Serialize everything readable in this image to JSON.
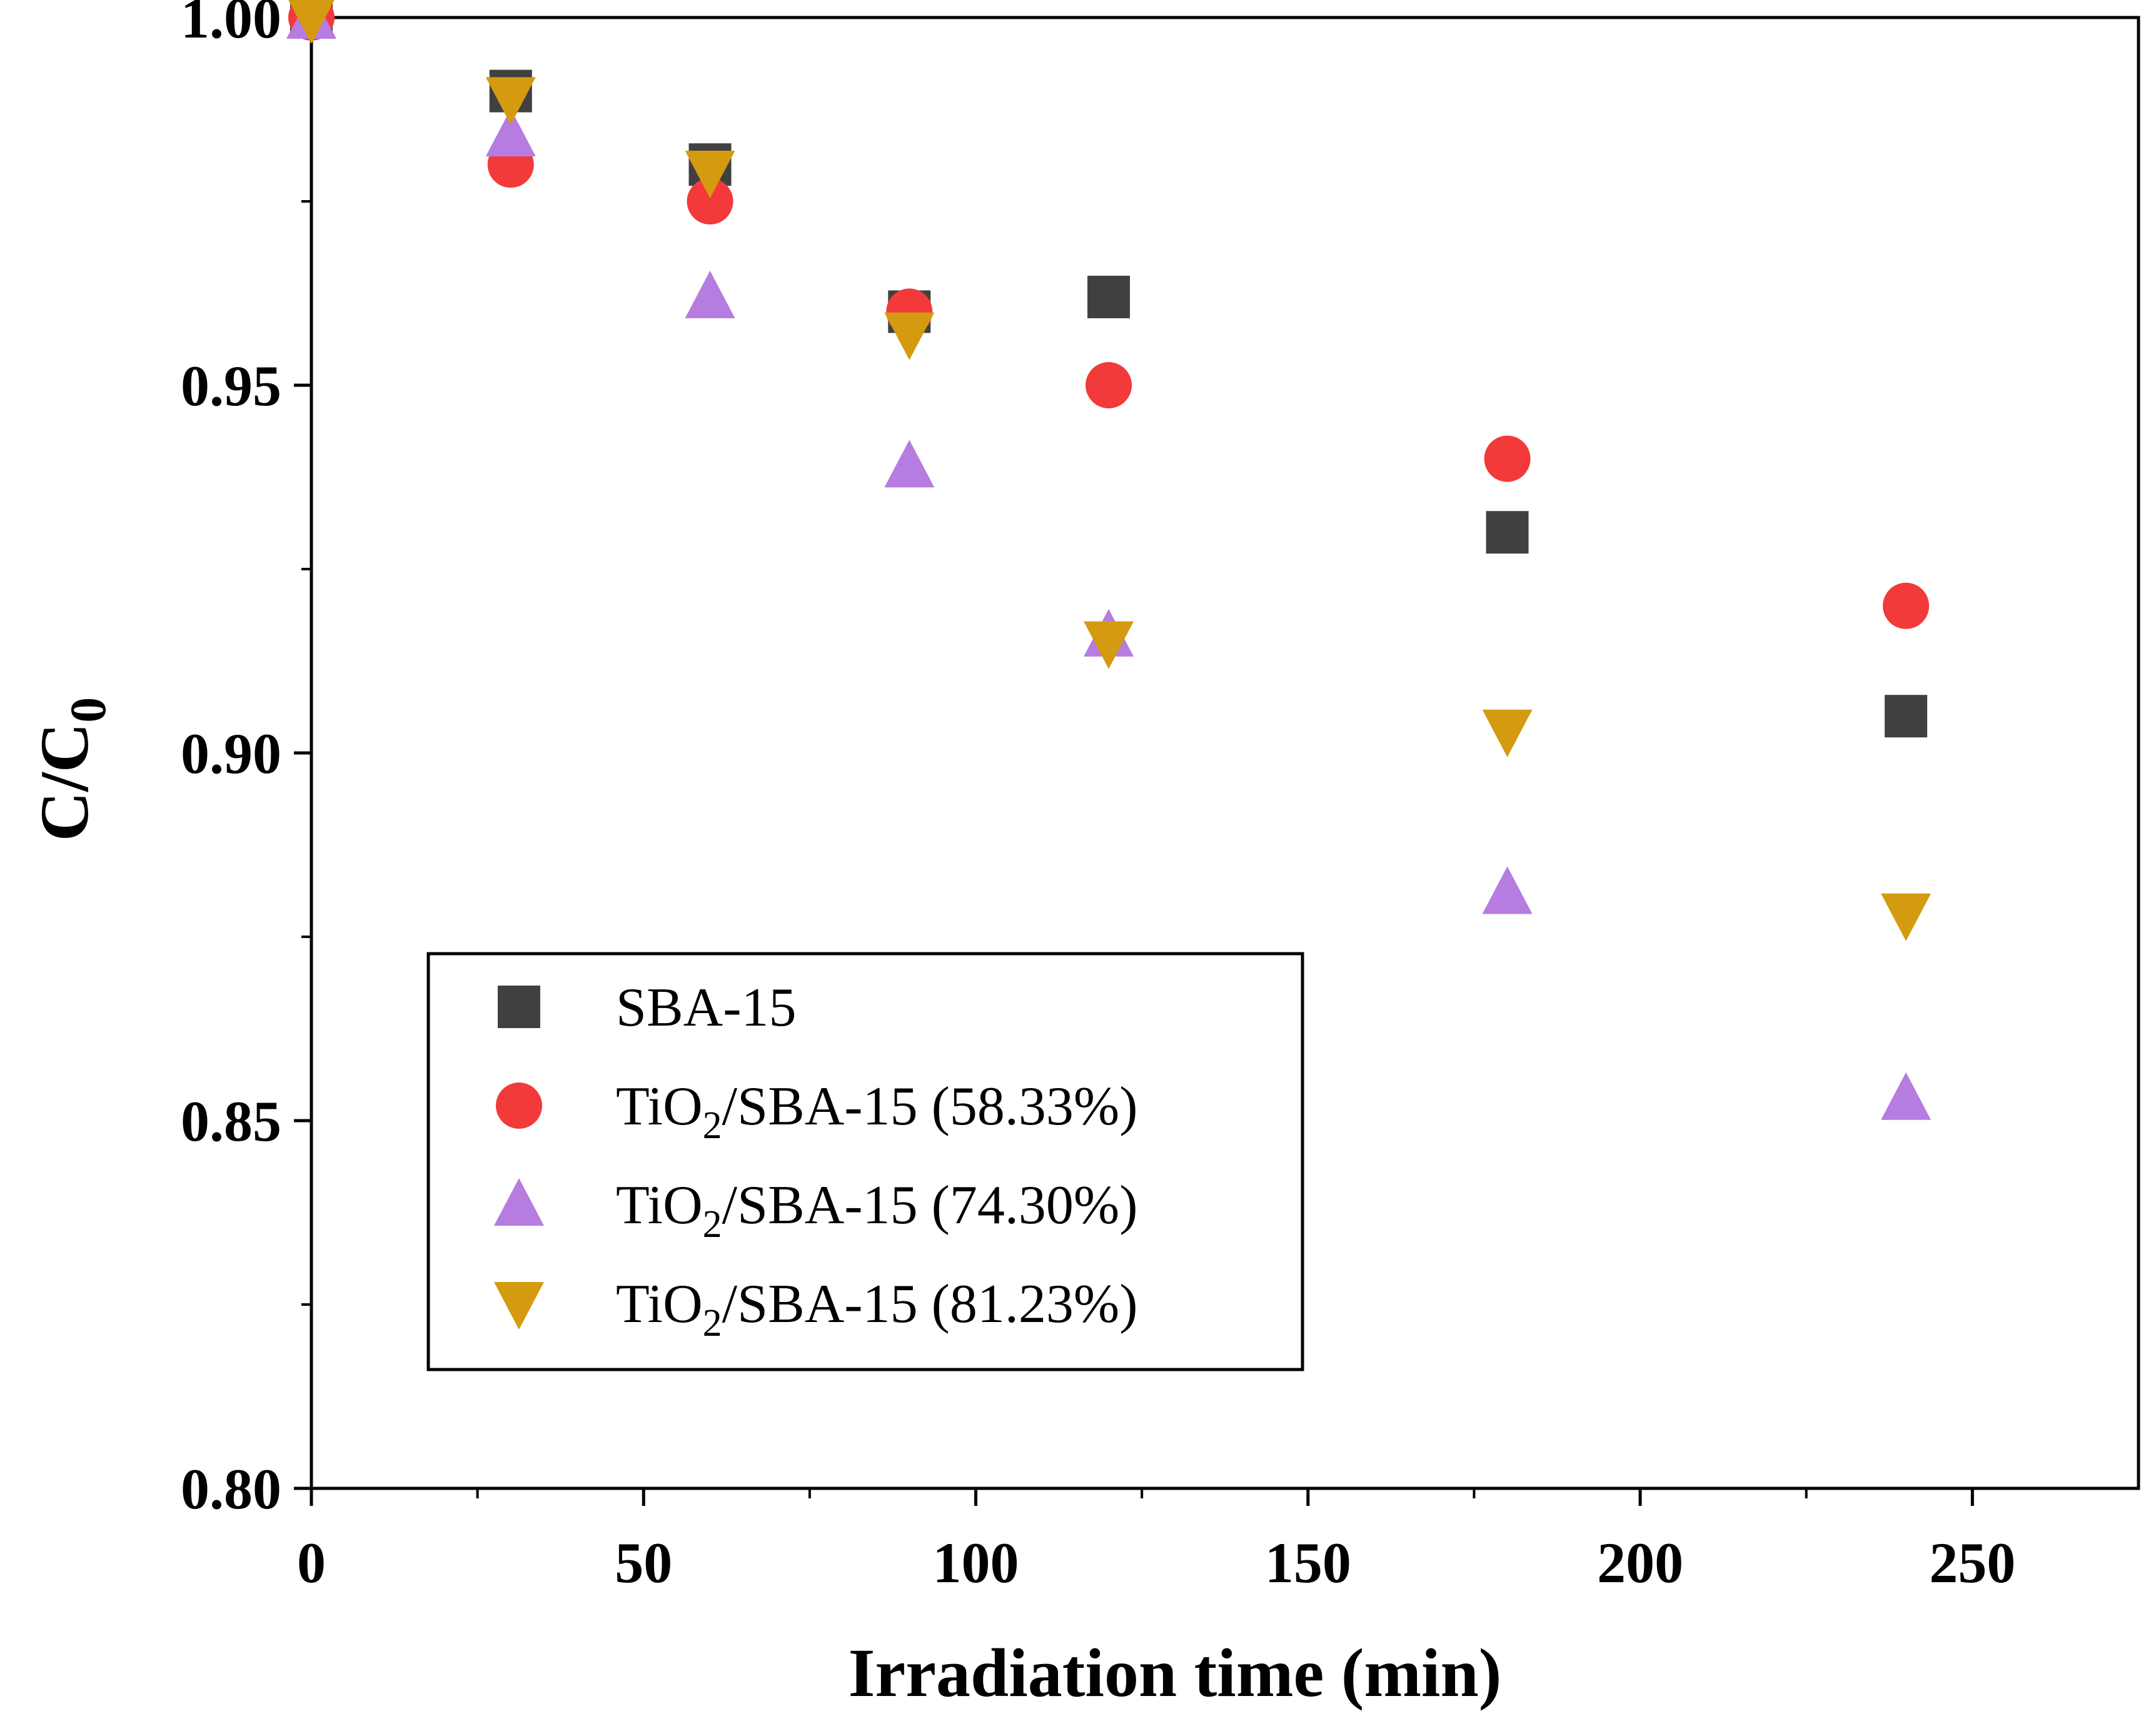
{
  "chart_data": {
    "type": "scatter",
    "title": "",
    "xlabel": "Irradiation time (min)",
    "ylabel_main": "C/C",
    "ylabel_sub": "0",
    "xlim": [
      0,
      275
    ],
    "ylim": [
      0.8,
      1.0
    ],
    "xticks": [
      0,
      50,
      100,
      150,
      200,
      250
    ],
    "xtick_labels": [
      "0",
      "50",
      "100",
      "150",
      "200",
      "250"
    ],
    "yticks": [
      0.8,
      0.85,
      0.9,
      0.95,
      1.0
    ],
    "ytick_labels": [
      "0.80",
      "0.85",
      "0.90",
      "0.95",
      "1.00"
    ],
    "legend_position": "lower-left",
    "series": [
      {
        "name": "SBA-15",
        "legend_main": "SBA-15",
        "legend_sub": "",
        "legend_rest": "",
        "marker": "square",
        "color": "#404040",
        "x": [
          0,
          30,
          60,
          90,
          120,
          180,
          240
        ],
        "y": [
          1.0,
          0.99,
          0.98,
          0.96,
          0.962,
          0.93,
          0.905
        ]
      },
      {
        "name": "TiO2/SBA-15 (58.33%)",
        "legend_main": "TiO",
        "legend_sub": "2",
        "legend_rest": "/SBA-15 (58.33%)",
        "marker": "circle",
        "color": "#f23a3a",
        "x": [
          0,
          30,
          60,
          90,
          120,
          180,
          240
        ],
        "y": [
          1.0,
          0.98,
          0.975,
          0.96,
          0.95,
          0.94,
          0.92
        ]
      },
      {
        "name": "TiO2/SBA-15 (74.30%)",
        "legend_main": "TiO",
        "legend_sub": "2",
        "legend_rest": "/SBA-15 (74.30%)",
        "marker": "triangle-up",
        "color": "#b67ce0",
        "x": [
          0,
          30,
          60,
          90,
          120,
          180,
          240
        ],
        "y": [
          1.0,
          0.984,
          0.962,
          0.939,
          0.916,
          0.881,
          0.853
        ]
      },
      {
        "name": "TiO2/SBA-15 (81.23%)",
        "legend_main": "TiO",
        "legend_sub": "2",
        "legend_rest": "/SBA-15 (81.23%)",
        "marker": "triangle-down",
        "color": "#d49a10",
        "x": [
          0,
          30,
          60,
          90,
          120,
          180,
          240
        ],
        "y": [
          1.0,
          0.989,
          0.979,
          0.957,
          0.915,
          0.903,
          0.878
        ]
      }
    ]
  }
}
